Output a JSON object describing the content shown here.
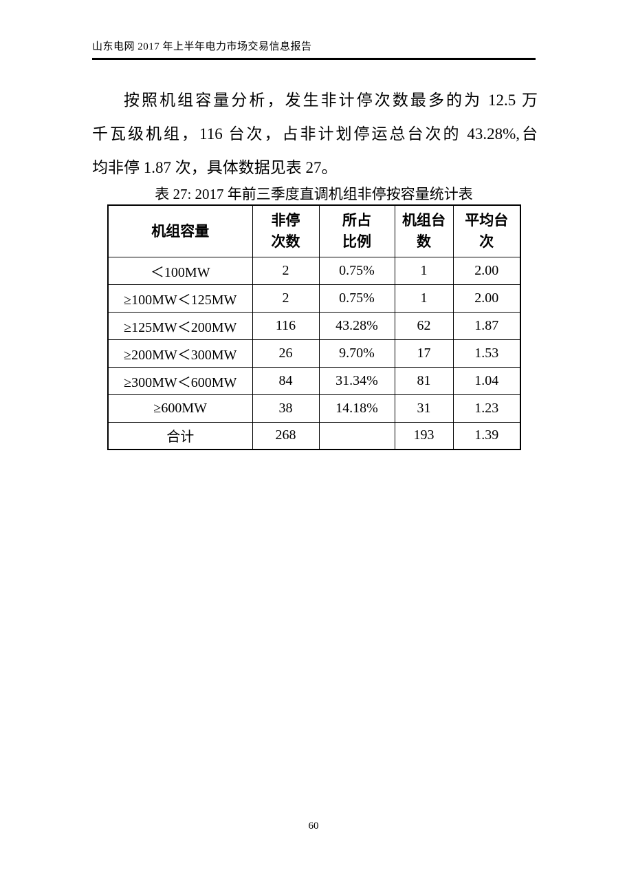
{
  "header": {
    "title": "山东电网 2017 年上半年电力市场交易信息报告"
  },
  "paragraph": {
    "lines": [
      "按照机组容量分析，发生非计停次数最多的为 12.5 万",
      "千瓦级机组，116 台次，占非计划停运总台次的 43.28%,台",
      "均非停 1.87 次，具体数据见表 27。"
    ]
  },
  "table": {
    "caption": "表 27: 2017 年前三季度直调机组非停按容量统计表",
    "columns": [
      [
        "机组容量"
      ],
      [
        "非停",
        "次数"
      ],
      [
        "所占",
        "比例"
      ],
      [
        "机组台",
        "数"
      ],
      [
        "平均台",
        "次"
      ]
    ],
    "rows": [
      [
        "＜100MW",
        "2",
        "0.75%",
        "1",
        "2.00"
      ],
      [
        "≥100MW＜125MW",
        "2",
        "0.75%",
        "1",
        "2.00"
      ],
      [
        "≥125MW＜200MW",
        "116",
        "43.28%",
        "62",
        "1.87"
      ],
      [
        "≥200MW＜300MW",
        "26",
        "9.70%",
        "17",
        "1.53"
      ],
      [
        "≥300MW＜600MW",
        "84",
        "31.34%",
        "81",
        "1.04"
      ],
      [
        "≥600MW",
        "38",
        "14.18%",
        "31",
        "1.23"
      ],
      [
        "合计",
        "268",
        "",
        "193",
        "1.39"
      ]
    ]
  },
  "footer": {
    "page_number": "60"
  }
}
